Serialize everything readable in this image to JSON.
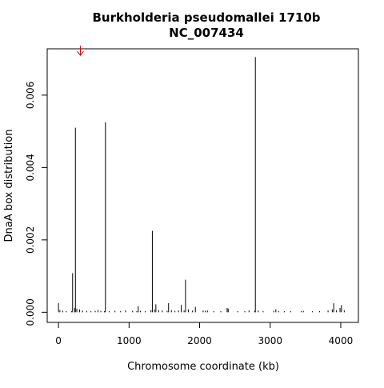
{
  "chart_data": {
    "type": "bar",
    "title": "Burkholderia pseudomallei 1710b",
    "subtitle": "NC_007434",
    "xlabel": "Chromosome coordinate (kb)",
    "ylabel": "DnaA box distribution",
    "xlim": [
      -160,
      4250
    ],
    "ylim": [
      -0.00028,
      0.00728
    ],
    "xticks": [
      {
        "value": 0,
        "label": "0"
      },
      {
        "value": 1000,
        "label": "1000"
      },
      {
        "value": 2000,
        "label": "2000"
      },
      {
        "value": 3000,
        "label": "3000"
      },
      {
        "value": 4000,
        "label": "4000"
      }
    ],
    "yticks": [
      {
        "value": 0.0,
        "label": "0.000"
      },
      {
        "value": 0.002,
        "label": "0.002"
      },
      {
        "value": 0.004,
        "label": "0.004"
      },
      {
        "value": 0.006,
        "label": "0.006"
      }
    ],
    "bar_color": "#000000",
    "annotations": [
      {
        "type": "arrow",
        "x": 310,
        "y": 0.0071,
        "direction": "down",
        "color": "#cc0000"
      }
    ],
    "series": [
      {
        "x": [
          0,
          20,
          60,
          110,
          185,
          200,
          230,
          240,
          260,
          300,
          340,
          400,
          460,
          520,
          560,
          600,
          650,
          665,
          720,
          800,
          880,
          950,
          1050,
          1110,
          1130,
          1160,
          1230,
          1310,
          1330,
          1360,
          1380,
          1420,
          1470,
          1540,
          1560,
          1600,
          1650,
          1700,
          1740,
          1780,
          1800,
          1840,
          1900,
          1940,
          2050,
          2080,
          2110,
          2200,
          2300,
          2390,
          2405,
          2540,
          2640,
          2700,
          2780,
          2790,
          2830,
          2900,
          3050,
          3080,
          3120,
          3200,
          3290,
          3440,
          3470,
          3600,
          3700,
          3820,
          3880,
          3900,
          3940,
          3990,
          4010,
          4050
        ],
        "values": [
          0.00025,
          6e-05,
          4e-05,
          3e-05,
          3e-05,
          0.00108,
          0.00012,
          0.0051,
          0.0001,
          8e-05,
          5e-05,
          4e-05,
          3e-05,
          4e-05,
          6e-05,
          4e-05,
          3e-05,
          0.00525,
          3e-05,
          4e-05,
          3e-05,
          5e-05,
          4e-05,
          3e-05,
          0.00017,
          4e-05,
          3e-05,
          6e-05,
          0.00225,
          8e-05,
          0.00022,
          6e-05,
          5e-05,
          4e-05,
          0.00025,
          6e-05,
          4e-05,
          5e-05,
          0.0002,
          5e-05,
          0.0009,
          8e-05,
          5e-05,
          0.00015,
          5e-05,
          4e-05,
          5e-05,
          3e-05,
          3e-05,
          0.00012,
          0.0001,
          3e-05,
          3e-05,
          5e-05,
          4e-05,
          0.00705,
          5e-05,
          3e-05,
          4e-05,
          8e-05,
          3e-05,
          3e-05,
          3e-05,
          3e-05,
          4e-05,
          3e-05,
          3e-05,
          5e-05,
          8e-05,
          0.00025,
          6e-05,
          0.00012,
          0.0002,
          5e-05
        ]
      }
    ]
  }
}
